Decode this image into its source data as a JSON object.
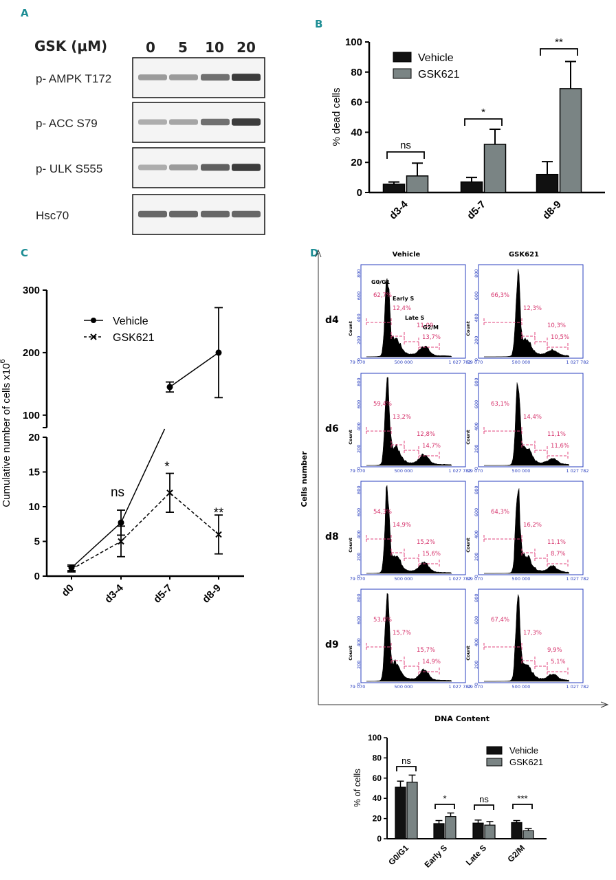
{
  "panels": {
    "A": {
      "label": "A",
      "gsk_label": "GSK (μM)",
      "doses": [
        "0",
        "5",
        "10",
        "20"
      ],
      "blots": [
        {
          "name": "p- AMPK T172",
          "intensity": [
            0.35,
            0.35,
            0.6,
            0.9
          ]
        },
        {
          "name": "p- ACC S79",
          "intensity": [
            0.25,
            0.3,
            0.6,
            0.9
          ]
        },
        {
          "name": "p- ULK S555",
          "intensity": [
            0.25,
            0.35,
            0.7,
            0.9
          ]
        },
        {
          "name": "Hsc70",
          "intensity": [
            0.65,
            0.65,
            0.65,
            0.65
          ]
        }
      ]
    },
    "B": {
      "label": "B",
      "chart_data": {
        "type": "bar",
        "ylabel": "% dead cells",
        "ylim": [
          0,
          100
        ],
        "yticks": [
          "0",
          "20",
          "40",
          "60",
          "80",
          "100"
        ],
        "categories": [
          "d3-4",
          "d5-7",
          "d8-9"
        ],
        "series": [
          {
            "name": "Vehicle",
            "color": "#111111",
            "values": [
              5.5,
              7,
              12
            ],
            "err": [
              1.5,
              3,
              8.5
            ]
          },
          {
            "name": "GSK621",
            "color": "#7a8484",
            "values": [
              11,
              32,
              69
            ],
            "err": [
              8.5,
              10,
              18
            ]
          }
        ],
        "significance": [
          "ns",
          "*",
          "**"
        ]
      }
    },
    "C": {
      "label": "C",
      "chart_data": {
        "type": "line",
        "ylabel": "Cumulative number of cells x10",
        "ylabel_exp": "6",
        "x": [
          "d0",
          "d3-4",
          "d5-7",
          "d8-9"
        ],
        "axis_break": {
          "lower": [
            0,
            20
          ],
          "upper": [
            80,
            300
          ]
        },
        "yticks_lower": [
          "0",
          "5",
          "10",
          "15",
          "20"
        ],
        "yticks_upper": [
          "100",
          "200",
          "300"
        ],
        "series": [
          {
            "name": "Vehicle",
            "marker": "circle",
            "linestyle": "solid",
            "values": [
              1.2,
              7.7,
              145,
              200
            ],
            "err": [
              0.4,
              1.8,
              8,
              72
            ]
          },
          {
            "name": "GSK621",
            "marker": "x",
            "linestyle": "dashed",
            "values": [
              1.0,
              5.0,
              12.0,
              6.0
            ],
            "err": [
              0.4,
              2.2,
              2.8,
              2.8
            ]
          }
        ],
        "significance": [
          {
            "x": "d3-4",
            "label": "ns"
          },
          {
            "x": "d5-7",
            "label": "*"
          },
          {
            "x": "d8-9",
            "label": "**"
          }
        ]
      }
    },
    "D": {
      "label": "D",
      "columns": [
        "Vehicle",
        "GSK621"
      ],
      "rows": [
        "d4",
        "d6",
        "d8",
        "d9"
      ],
      "phase_labels": [
        "G0/G1",
        "Early S",
        "Late S",
        "G2/M"
      ],
      "x_ticks": [
        "79 070",
        "500 000",
        "1 027 782"
      ],
      "y_label": "Count",
      "y_ticks": [
        "0",
        "200",
        "400",
        "600",
        "800"
      ],
      "x_axis_label": "DNA Content",
      "y_axis_label": "Cells number",
      "histograms": [
        [
          {
            "pcts": [
              "62,7%",
              "12,4%",
              "11,09",
              "13,7%"
            ]
          },
          {
            "pcts": [
              "66,3%",
              "12,3%",
              "10,3%",
              "10,5%"
            ]
          }
        ],
        [
          {
            "pcts": [
              "59,4%",
              "13,2%",
              "12,8%",
              "14,7%"
            ]
          },
          {
            "pcts": [
              "63,1%",
              "14,4%",
              "11,1%",
              "11,6%"
            ]
          }
        ],
        [
          {
            "pcts": [
              "54,3%",
              "14,9%",
              "15,2%",
              "15,6%"
            ]
          },
          {
            "pcts": [
              "64,3%",
              "16,2%",
              "11,1%",
              "8,7%"
            ]
          }
        ],
        [
          {
            "pcts": [
              "53,6%",
              "15,7%",
              "15,7%",
              "14,9%"
            ]
          },
          {
            "pcts": [
              "67,4%",
              "17,3%",
              "9,9%",
              "5,1%"
            ]
          }
        ]
      ],
      "chart_data": {
        "type": "bar",
        "ylabel": "% of cells",
        "ylim": [
          0,
          100
        ],
        "yticks": [
          "0",
          "20",
          "40",
          "60",
          "80",
          "100"
        ],
        "categories": [
          "G0/G1",
          "Early S",
          "Late S",
          "G2/M"
        ],
        "series": [
          {
            "name": "Vehicle",
            "color": "#111111",
            "values": [
              51,
              15,
              15.5,
              16
            ],
            "err": [
              6,
              3,
              3,
              2
            ]
          },
          {
            "name": "GSK621",
            "color": "#7a8484",
            "values": [
              56,
              22,
              13.5,
              8
            ],
            "err": [
              7,
              3.5,
              3.5,
              2
            ]
          }
        ],
        "significance": [
          "ns",
          "*",
          "ns",
          "***"
        ]
      }
    }
  }
}
